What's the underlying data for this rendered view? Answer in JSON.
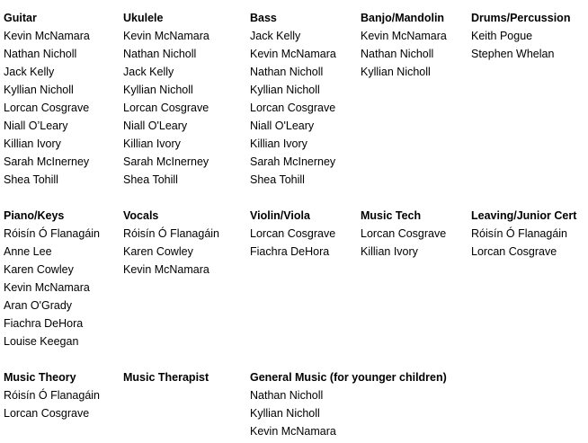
{
  "groups": [
    {
      "title": "Guitar",
      "names": [
        "Kevin McNamara",
        "Nathan Nicholl",
        "Jack Kelly",
        "Kyllian Nicholl",
        "Lorcan Cosgrave",
        "Niall O’Leary",
        "Killian Ivory",
        "Sarah McInerney",
        "Shea Tohill"
      ]
    },
    {
      "title": "Ukulele",
      "names": [
        "Kevin McNamara",
        "Nathan Nicholl",
        "Jack Kelly",
        "Kyllian Nicholl",
        "Lorcan Cosgrave",
        "Niall O'Leary",
        "Killian Ivory",
        "Sarah McInerney",
        "Shea Tohill"
      ]
    },
    {
      "title": "Bass",
      "names": [
        "Jack Kelly",
        "Kevin McNamara",
        "Nathan Nicholl",
        "Kyllian Nicholl",
        "Lorcan Cosgrave",
        "Niall O'Leary",
        "Killian Ivory",
        "Sarah McInerney",
        "Shea Tohill"
      ]
    },
    {
      "title": "Banjo/Mandolin",
      "names": [
        "Kevin McNamara",
        "Nathan Nicholl",
        "Kyllian Nicholl"
      ]
    },
    {
      "title": "Drums/Percussion",
      "names": [
        "Keith Pogue",
        "Stephen Whelan"
      ]
    },
    {
      "title": "Piano/Keys",
      "names": [
        "Róisín Ó Flanagáin",
        "Anne Lee",
        "Karen Cowley",
        "Kevin McNamara",
        "Aran O'Grady",
        "Fiachra DeHora",
        "Louise Keegan"
      ]
    },
    {
      "title": "Vocals",
      "names": [
        "Róisín Ó Flanagáin",
        "Karen Cowley",
        "Kevin McNamara"
      ]
    },
    {
      "title": "Violin/Viola",
      "names": [
        "Lorcan Cosgrave",
        "Fiachra DeHora"
      ]
    },
    {
      "title": "Music Tech",
      "names": [
        "Lorcan Cosgrave",
        "Killian Ivory"
      ]
    },
    {
      "title": "Leaving/Junior Cert",
      "names": [
        "Róisín Ó Flanagáin",
        "Lorcan Cosgrave"
      ]
    },
    {
      "title": "Music Theory",
      "names": [
        "Róisín Ó Flanagáin",
        "Lorcan Cosgrave"
      ]
    },
    {
      "title": "Music Therapist",
      "names": []
    },
    {
      "title": "General Music (for younger children)",
      "names": [
        "Nathan Nicholl",
        "Kyllian Nicholl",
        "Kevin McNamara"
      ]
    }
  ]
}
